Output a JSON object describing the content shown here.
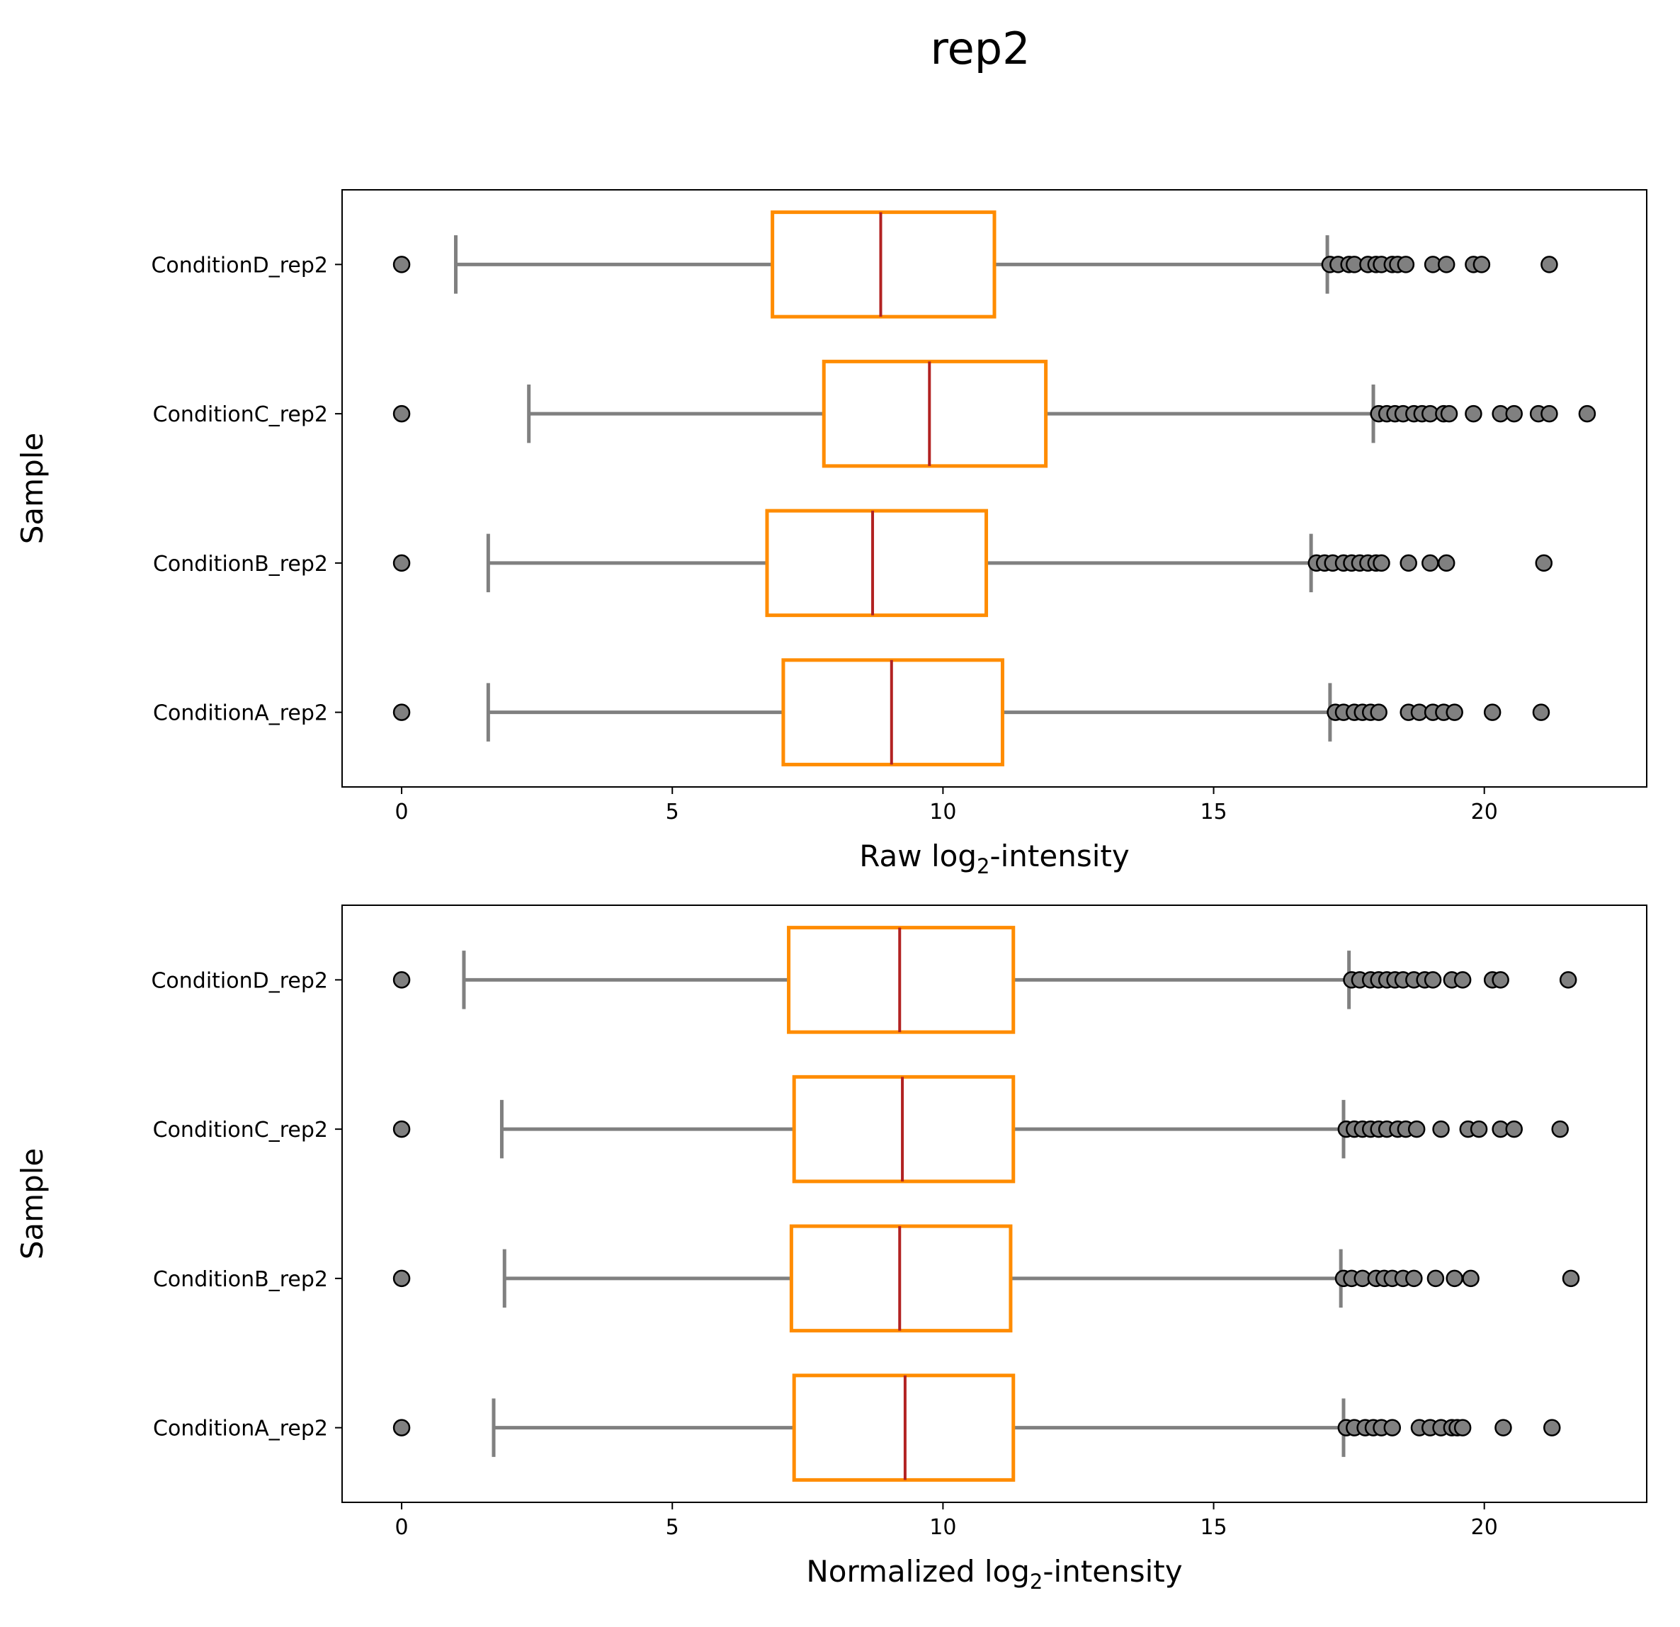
{
  "suptitle": "rep2",
  "colors": {
    "box_edge": "#ff8c00",
    "median": "#b22222",
    "whisker": "#808080",
    "flier_fill": "#808080",
    "flier_edge": "#000000"
  },
  "chart_data": [
    {
      "type": "boxplot",
      "orientation": "horizontal",
      "title": "",
      "xlabel": "Raw log",
      "xlabel_sub": "2",
      "xlabel_suffix": "-intensity",
      "ylabel": "Sample",
      "xlim": [
        -1.1,
        23.0
      ],
      "xticks": [
        0,
        5,
        10,
        15,
        20
      ],
      "categories": [
        "ConditionD_rep2",
        "ConditionC_rep2",
        "ConditionB_rep2",
        "ConditionA_rep2"
      ],
      "boxes": [
        {
          "whislo": 1.0,
          "q1": 6.85,
          "med": 8.85,
          "q3": 10.95,
          "whishi": 17.1,
          "fliers": [
            0,
            17.15,
            17.3,
            17.5,
            17.6,
            17.85,
            18.0,
            18.1,
            18.3,
            18.4,
            18.55,
            19.05,
            19.3,
            19.8,
            19.95,
            21.2
          ]
        },
        {
          "whislo": 2.35,
          "q1": 7.8,
          "med": 9.75,
          "q3": 11.9,
          "whishi": 17.95,
          "fliers": [
            0,
            18.05,
            18.2,
            18.35,
            18.5,
            18.7,
            18.85,
            19.0,
            19.25,
            19.35,
            19.8,
            20.3,
            20.55,
            21.0,
            21.2,
            21.9
          ]
        },
        {
          "whislo": 1.6,
          "q1": 6.75,
          "med": 8.7,
          "q3": 10.8,
          "whishi": 16.8,
          "fliers": [
            0,
            16.9,
            17.05,
            17.2,
            17.4,
            17.55,
            17.7,
            17.85,
            18.0,
            18.1,
            18.6,
            19.0,
            19.3,
            21.1
          ]
        },
        {
          "whislo": 1.6,
          "q1": 7.05,
          "med": 9.05,
          "q3": 11.1,
          "whishi": 17.15,
          "fliers": [
            0,
            17.25,
            17.4,
            17.6,
            17.75,
            17.9,
            18.05,
            18.6,
            18.8,
            19.05,
            19.25,
            19.45,
            20.15,
            21.05
          ]
        }
      ]
    },
    {
      "type": "boxplot",
      "orientation": "horizontal",
      "title": "",
      "xlabel": "Normalized log",
      "xlabel_sub": "2",
      "xlabel_suffix": "-intensity",
      "ylabel": "Sample",
      "xlim": [
        -1.1,
        23.0
      ],
      "xticks": [
        0,
        5,
        10,
        15,
        20
      ],
      "categories": [
        "ConditionD_rep2",
        "ConditionC_rep2",
        "ConditionB_rep2",
        "ConditionA_rep2"
      ],
      "boxes": [
        {
          "whislo": 1.15,
          "q1": 7.15,
          "med": 9.2,
          "q3": 11.3,
          "whishi": 17.5,
          "fliers": [
            0,
            17.55,
            17.7,
            17.9,
            18.05,
            18.2,
            18.35,
            18.5,
            18.7,
            18.9,
            19.05,
            19.4,
            19.6,
            20.15,
            20.3,
            21.55
          ]
        },
        {
          "whislo": 1.85,
          "q1": 7.25,
          "med": 9.25,
          "q3": 11.3,
          "whishi": 17.4,
          "fliers": [
            0,
            17.45,
            17.6,
            17.75,
            17.9,
            18.05,
            18.2,
            18.4,
            18.55,
            18.75,
            19.2,
            19.7,
            19.9,
            20.3,
            20.55,
            21.4
          ]
        },
        {
          "whislo": 1.9,
          "q1": 7.2,
          "med": 9.2,
          "q3": 11.25,
          "whishi": 17.35,
          "fliers": [
            0,
            17.4,
            17.55,
            17.75,
            18.0,
            18.15,
            18.3,
            18.5,
            18.7,
            19.1,
            19.45,
            19.75,
            21.6
          ]
        },
        {
          "whislo": 1.7,
          "q1": 7.25,
          "med": 9.3,
          "q3": 11.3,
          "whishi": 17.4,
          "fliers": [
            0,
            17.45,
            17.6,
            17.8,
            17.95,
            18.1,
            18.3,
            18.8,
            19.0,
            19.2,
            19.4,
            19.5,
            19.6,
            20.35,
            21.25
          ]
        }
      ]
    }
  ]
}
